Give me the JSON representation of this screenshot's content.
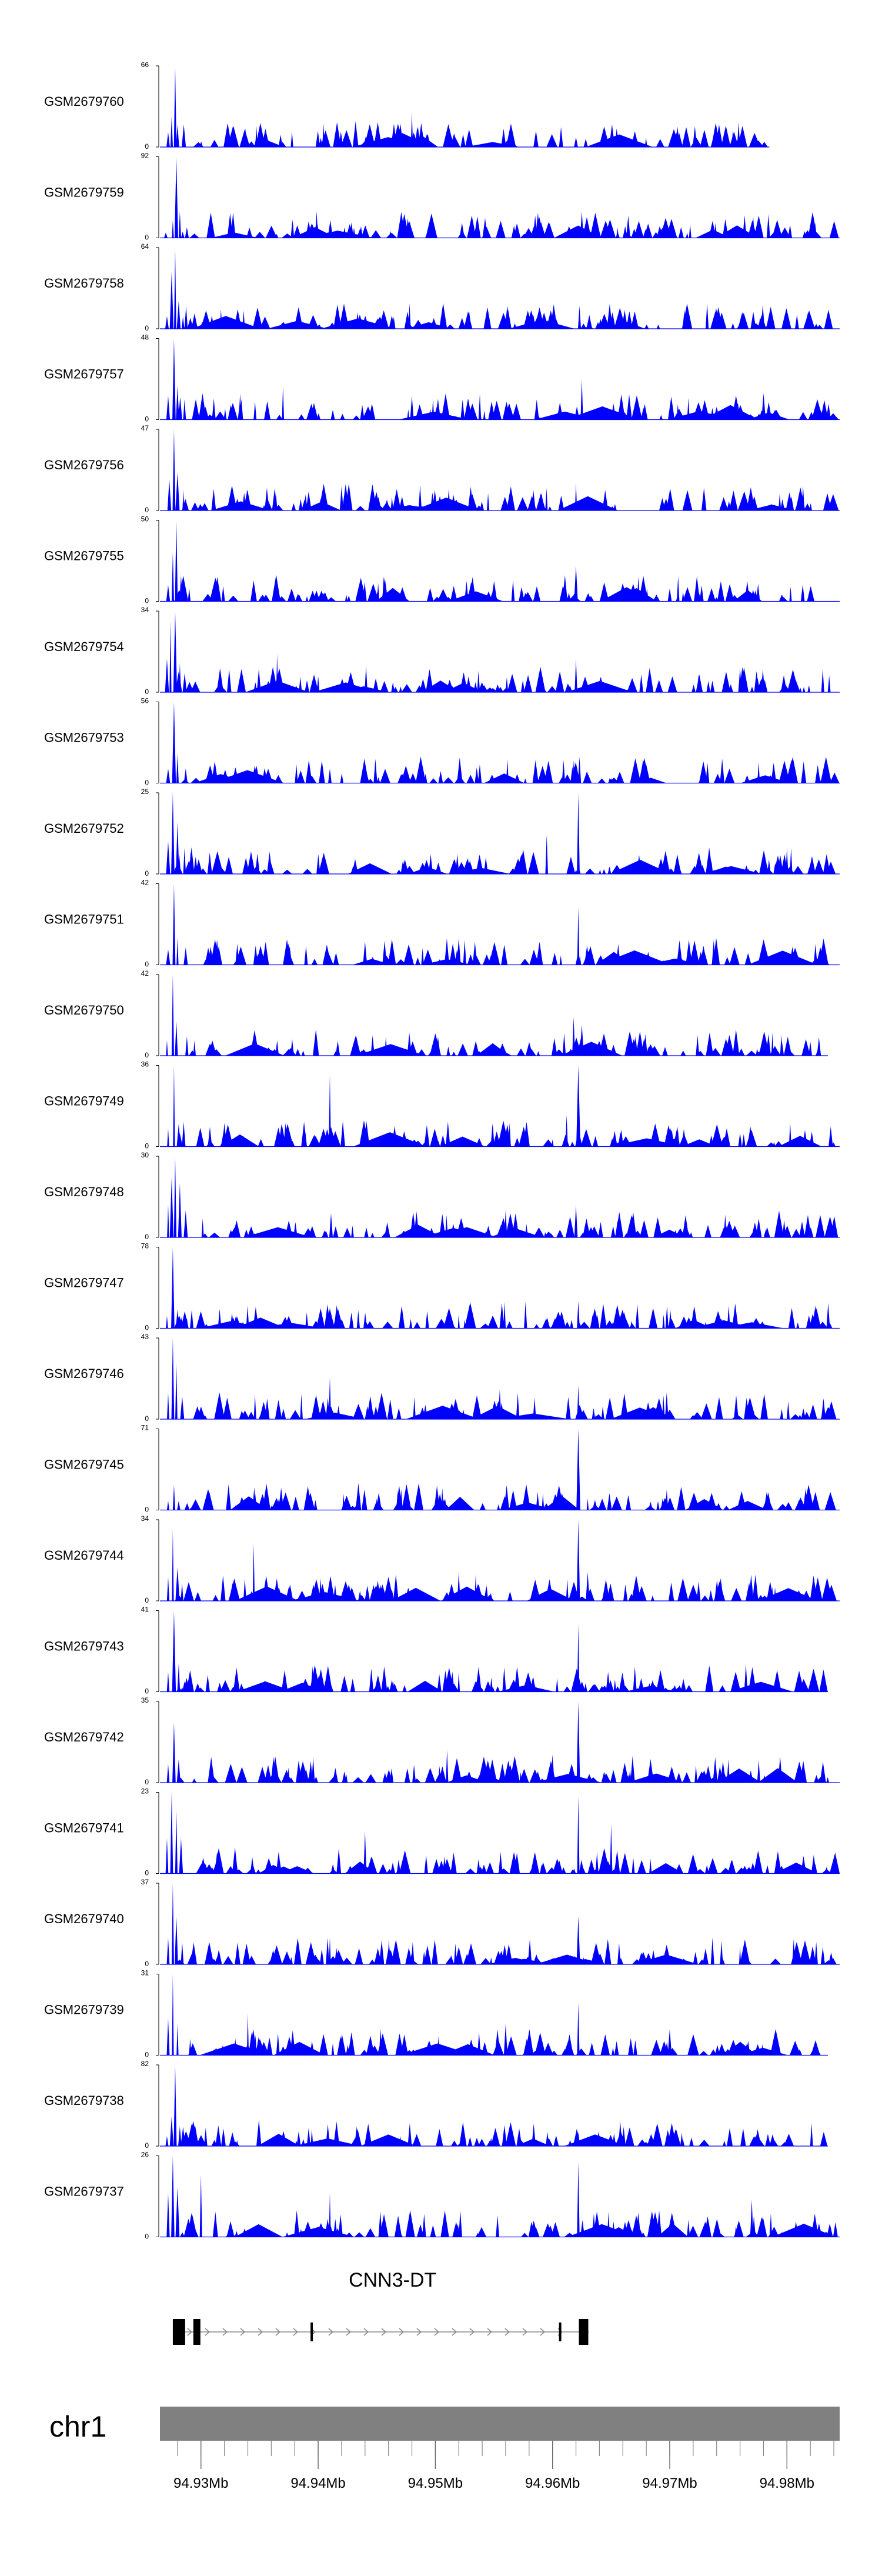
{
  "chart_data": {
    "type": "area",
    "title": "",
    "xlabel": "",
    "ylabel": "",
    "x_unit": "Mb",
    "xlim": [
      94.9265,
      94.9845
    ],
    "fill_color": "#0000ff",
    "tracks": [
      {
        "name": "GSM2679760",
        "ymax": 66,
        "ymin": 0,
        "seed": 11,
        "peaks": [
          [
            94.9272,
            12
          ],
          [
            94.9275,
            25
          ],
          [
            94.9278,
            66
          ],
          [
            94.928,
            18
          ],
          [
            94.9285,
            14
          ],
          [
            94.948,
            28
          ],
          [
            94.962,
            8
          ]
        ],
        "xmax": 94.9785
      },
      {
        "name": "GSM2679759",
        "ymax": 92,
        "ymin": 0,
        "seed": 12,
        "peaks": [
          [
            94.927,
            6
          ],
          [
            94.9276,
            20
          ],
          [
            94.9279,
            92
          ],
          [
            94.9282,
            30
          ],
          [
            94.9288,
            12
          ],
          [
            94.9475,
            18
          ],
          [
            94.9625,
            30
          ]
        ],
        "xmax": 94.9845
      },
      {
        "name": "GSM2679758",
        "ymax": 64,
        "ymin": 0,
        "seed": 13,
        "peaks": [
          [
            94.9271,
            10
          ],
          [
            94.9275,
            45
          ],
          [
            94.9278,
            64
          ],
          [
            94.9281,
            22
          ],
          [
            94.9287,
            10
          ],
          [
            94.9478,
            20
          ],
          [
            94.9623,
            18
          ]
        ],
        "xmax": 94.9845
      },
      {
        "name": "GSM2679757",
        "ymax": 48,
        "ymin": 0,
        "seed": 14,
        "peaks": [
          [
            94.9272,
            14
          ],
          [
            94.9277,
            48
          ],
          [
            94.928,
            20
          ],
          [
            94.9286,
            12
          ],
          [
            94.937,
            20
          ],
          [
            94.948,
            14
          ],
          [
            94.9625,
            24
          ]
        ],
        "xmax": 94.9845
      },
      {
        "name": "GSM2679756",
        "ymax": 47,
        "ymin": 0,
        "seed": 15,
        "peaks": [
          [
            94.9273,
            18
          ],
          [
            94.9277,
            47
          ],
          [
            94.928,
            22
          ],
          [
            94.9285,
            12
          ],
          [
            94.942,
            14
          ],
          [
            94.9545,
            10
          ],
          [
            94.962,
            16
          ]
        ],
        "xmax": 94.9845
      },
      {
        "name": "GSM2679755",
        "ymax": 50,
        "ymin": 0,
        "seed": 16,
        "peaks": [
          [
            94.9272,
            10
          ],
          [
            94.9276,
            30
          ],
          [
            94.9279,
            50
          ],
          [
            94.9283,
            16
          ],
          [
            94.929,
            8
          ],
          [
            94.962,
            22
          ],
          [
            94.97,
            8
          ]
        ],
        "xmax": 94.9845
      },
      {
        "name": "GSM2679754",
        "ymax": 34,
        "ymin": 0,
        "seed": 17,
        "peaks": [
          [
            94.9271,
            14
          ],
          [
            94.9274,
            30
          ],
          [
            94.9278,
            34
          ],
          [
            94.9282,
            12
          ],
          [
            94.9365,
            16
          ],
          [
            94.962,
            14
          ],
          [
            94.976,
            10
          ]
        ],
        "xmax": 94.9845
      },
      {
        "name": "GSM2679753",
        "ymax": 56,
        "ymin": 0,
        "seed": 18,
        "peaks": [
          [
            94.9272,
            10
          ],
          [
            94.9277,
            56
          ],
          [
            94.928,
            20
          ],
          [
            94.9287,
            10
          ],
          [
            94.941,
            10
          ],
          [
            94.949,
            8
          ],
          [
            94.9623,
            18
          ]
        ],
        "xmax": 94.9845
      },
      {
        "name": "GSM2679752",
        "ymax": 25,
        "ymin": 0,
        "seed": 19,
        "peaks": [
          [
            94.9272,
            10
          ],
          [
            94.9276,
            25
          ],
          [
            94.928,
            16
          ],
          [
            94.9286,
            8
          ],
          [
            94.9595,
            12
          ],
          [
            94.9622,
            25
          ],
          [
            94.98,
            8
          ]
        ],
        "xmax": 94.9845
      },
      {
        "name": "GSM2679751",
        "ymax": 42,
        "ymin": 0,
        "seed": 20,
        "peaks": [
          [
            94.9272,
            8
          ],
          [
            94.9277,
            42
          ],
          [
            94.928,
            14
          ],
          [
            94.9287,
            9
          ],
          [
            94.944,
            12
          ],
          [
            94.952,
            14
          ],
          [
            94.9622,
            30
          ]
        ],
        "xmax": 94.9845
      },
      {
        "name": "GSM2679750",
        "ymax": 42,
        "ymin": 0,
        "seed": 21,
        "peaks": [
          [
            94.9271,
            8
          ],
          [
            94.9276,
            42
          ],
          [
            94.9279,
            18
          ],
          [
            94.9288,
            10
          ],
          [
            94.9365,
            8
          ],
          [
            94.9618,
            20
          ],
          [
            94.9625,
            16
          ]
        ],
        "xmax": 94.9835
      },
      {
        "name": "GSM2679749",
        "ymax": 36,
        "ymin": 0,
        "seed": 22,
        "peaks": [
          [
            94.9272,
            8
          ],
          [
            94.9277,
            36
          ],
          [
            94.9281,
            10
          ],
          [
            94.941,
            32
          ],
          [
            94.9612,
            14
          ],
          [
            94.9622,
            36
          ],
          [
            94.976,
            6
          ]
        ],
        "xmax": 94.9845
      },
      {
        "name": "GSM2679748",
        "ymax": 30,
        "ymin": 0,
        "seed": 23,
        "peaks": [
          [
            94.9272,
            12
          ],
          [
            94.9275,
            22
          ],
          [
            94.9278,
            30
          ],
          [
            94.9282,
            20
          ],
          [
            94.9287,
            10
          ],
          [
            94.956,
            10
          ],
          [
            94.962,
            12
          ]
        ],
        "xmax": 94.9845
      },
      {
        "name": "GSM2679747",
        "ymax": 78,
        "ymin": 0,
        "seed": 24,
        "peaks": [
          [
            94.9271,
            12
          ],
          [
            94.9276,
            78
          ],
          [
            94.928,
            18
          ],
          [
            94.9288,
            10
          ],
          [
            94.941,
            20
          ],
          [
            94.952,
            14
          ],
          [
            94.9622,
            26
          ]
        ],
        "xmax": 94.9845
      },
      {
        "name": "GSM2679746",
        "ymax": 43,
        "ymin": 0,
        "seed": 25,
        "peaks": [
          [
            94.9272,
            14
          ],
          [
            94.9276,
            43
          ],
          [
            94.9279,
            30
          ],
          [
            94.9284,
            12
          ],
          [
            94.941,
            22
          ],
          [
            94.9555,
            16
          ],
          [
            94.9622,
            18
          ]
        ],
        "xmax": 94.9845
      },
      {
        "name": "GSM2679745",
        "ymax": 71,
        "ymin": 0,
        "seed": 26,
        "peaks": [
          [
            94.9272,
            8
          ],
          [
            94.9277,
            22
          ],
          [
            94.9281,
            8
          ],
          [
            94.945,
            10
          ],
          [
            94.9622,
            71
          ],
          [
            94.963,
            10
          ],
          [
            94.97,
            8
          ]
        ],
        "xmax": 94.9845
      },
      {
        "name": "GSM2679744",
        "ymax": 34,
        "ymin": 0,
        "seed": 27,
        "peaks": [
          [
            94.9272,
            10
          ],
          [
            94.9276,
            30
          ],
          [
            94.928,
            14
          ],
          [
            94.9345,
            24
          ],
          [
            94.952,
            12
          ],
          [
            94.9622,
            34
          ],
          [
            94.963,
            12
          ]
        ],
        "xmax": 94.9845
      },
      {
        "name": "GSM2679743",
        "ymax": 41,
        "ymin": 0,
        "seed": 28,
        "peaks": [
          [
            94.9272,
            10
          ],
          [
            94.9277,
            41
          ],
          [
            94.9281,
            14
          ],
          [
            94.929,
            8
          ],
          [
            94.952,
            10
          ],
          [
            94.9622,
            34
          ],
          [
            94.9765,
            14
          ]
        ],
        "xmax": 94.9835
      },
      {
        "name": "GSM2679742",
        "ymax": 35,
        "ymin": 0,
        "seed": 29,
        "peaks": [
          [
            94.9272,
            8
          ],
          [
            94.9277,
            26
          ],
          [
            94.9281,
            10
          ],
          [
            94.951,
            14
          ],
          [
            94.96,
            12
          ],
          [
            94.9622,
            35
          ],
          [
            94.975,
            10
          ]
        ],
        "xmax": 94.9845
      },
      {
        "name": "GSM2679741",
        "ymax": 23,
        "ymin": 0,
        "seed": 30,
        "peaks": [
          [
            94.9271,
            10
          ],
          [
            94.9275,
            23
          ],
          [
            94.9279,
            18
          ],
          [
            94.9283,
            10
          ],
          [
            94.944,
            12
          ],
          [
            94.9622,
            22
          ],
          [
            94.965,
            14
          ]
        ],
        "xmax": 94.9845
      },
      {
        "name": "GSM2679740",
        "ymax": 37,
        "ymin": 0,
        "seed": 31,
        "peaks": [
          [
            94.9272,
            12
          ],
          [
            94.9276,
            37
          ],
          [
            94.9279,
            22
          ],
          [
            94.9284,
            10
          ],
          [
            94.941,
            12
          ],
          [
            94.9622,
            22
          ],
          [
            94.976,
            8
          ]
        ],
        "xmax": 94.9845
      },
      {
        "name": "GSM2679739",
        "ymax": 31,
        "ymin": 0,
        "seed": 32,
        "peaks": [
          [
            94.9272,
            14
          ],
          [
            94.9276,
            31
          ],
          [
            94.928,
            12
          ],
          [
            94.934,
            16
          ],
          [
            94.956,
            12
          ],
          [
            94.9622,
            20
          ],
          [
            94.97,
            10
          ]
        ],
        "xmax": 94.9835
      },
      {
        "name": "GSM2679738",
        "ymax": 82,
        "ymin": 0,
        "seed": 33,
        "peaks": [
          [
            94.9271,
            10
          ],
          [
            94.9275,
            30
          ],
          [
            94.9278,
            82
          ],
          [
            94.9282,
            20
          ],
          [
            94.929,
            10
          ],
          [
            94.947,
            10
          ],
          [
            94.9622,
            14
          ]
        ],
        "xmax": 94.9835
      },
      {
        "name": "GSM2679737",
        "ymax": 26,
        "ymin": 0,
        "seed": 34,
        "peaks": [
          [
            94.9272,
            14
          ],
          [
            94.9276,
            26
          ],
          [
            94.928,
            16
          ],
          [
            94.93,
            20
          ],
          [
            94.941,
            14
          ],
          [
            94.9622,
            24
          ],
          [
            94.977,
            12
          ]
        ],
        "xmax": 94.9845
      }
    ],
    "gene": {
      "name": "CNN3-DT",
      "start": 94.9276,
      "end": 94.9631,
      "exons": [
        [
          94.9276,
          94.92865
        ],
        [
          94.92935,
          94.92995
        ],
        [
          94.93935,
          94.93955
        ],
        [
          94.96055,
          94.96075
        ],
        [
          94.96225,
          94.96305
        ]
      ]
    },
    "chromosome": {
      "name": "chr1",
      "ticks": [
        94.93,
        94.94,
        94.95,
        94.96,
        94.97,
        94.98
      ],
      "tick_labels": [
        "94.93Mb",
        "94.94Mb",
        "94.95Mb",
        "94.96Mb",
        "94.97Mb",
        "94.98Mb"
      ],
      "minor_tick_step": 0.002,
      "color": "#808080"
    }
  }
}
